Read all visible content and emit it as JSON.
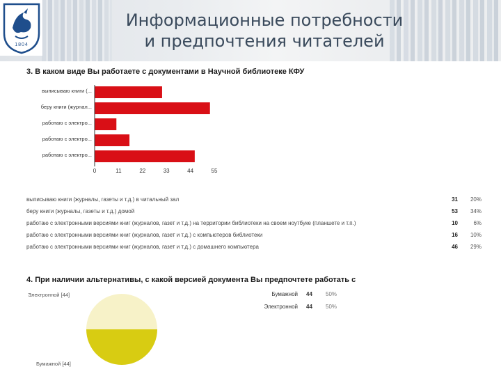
{
  "header": {
    "title_line1": "Информационные потребности",
    "title_line2": "и предпочтения читателей",
    "logo_year": "1804",
    "accent": "#1f4e8c"
  },
  "question3": {
    "title": "3. В каком виде Вы работаете с документами в Научной библиотеке КФУ",
    "rows": [
      {
        "text": "выписываю книги (журналы, газеты и т.д.) в читальный зал",
        "count": "31",
        "pct": "20%"
      },
      {
        "text": "беру книги (журналы, газеты и т.д.) домой",
        "count": "53",
        "pct": "34%"
      },
      {
        "text": "работаю с электронными версиями книг (журналов, газет и т.д.) на территории библиотеки на своем ноутбуке (планшете и т.п.)",
        "count": "10",
        "pct": "6%"
      },
      {
        "text": "работаю с электронными версиями книг (журналов, газет и т.д.) с компьютеров библиотеки",
        "count": "16",
        "pct": "10%"
      },
      {
        "text": "работаю с электронными версиями книг (журналов, газет и т.д.) с домашнего компьютера",
        "count": "46",
        "pct": "29%"
      }
    ]
  },
  "question4": {
    "title": "4. При наличии альтернативы, с какой версией документа Вы предпочтете работать с",
    "pie_top_label": "Электронной [44]",
    "pie_bottom_label": "Бумажной [44]",
    "legend": [
      {
        "name": "Бумажной",
        "count": "44",
        "pct": "50%"
      },
      {
        "name": "Электронной",
        "count": "44",
        "pct": "50%"
      }
    ]
  },
  "chart_data": [
    {
      "type": "bar",
      "orientation": "horizontal",
      "categories": [
        "выписываю книги (...",
        "беру книги (журнал...",
        "работаю с электро...",
        "работаю с электро...",
        "работаю с электро..."
      ],
      "values": [
        31,
        53,
        10,
        16,
        46
      ],
      "xlim": [
        0,
        55
      ],
      "xticks": [
        "0",
        "11",
        "22",
        "33",
        "44",
        "55"
      ],
      "color": "#d90f16",
      "grid": false
    },
    {
      "type": "pie",
      "labels": [
        "Электронной",
        "Бумажной"
      ],
      "values": [
        44,
        44
      ],
      "colors": [
        "#f7f2c8",
        "#d8cc12"
      ]
    }
  ]
}
